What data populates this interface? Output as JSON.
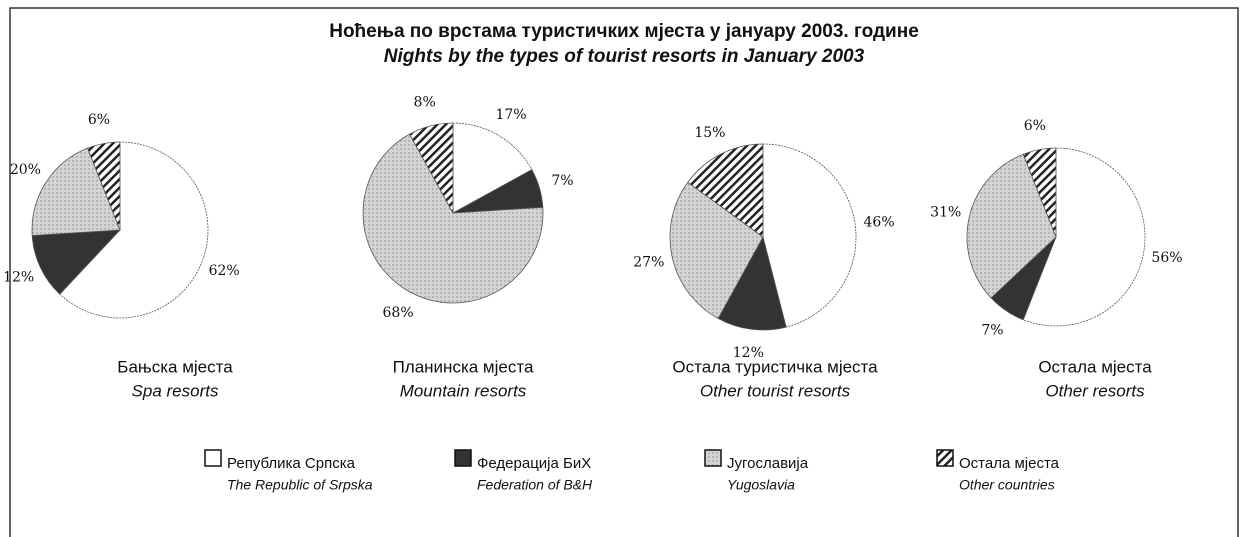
{
  "title": "Ноћења по врстама туристичких мјеста у јануару 2003. године",
  "subtitle": "Nights by the types of tourist resorts in January  2003",
  "legend": [
    {
      "name": "Република Српска",
      "name_en": "The Republic of Srpska",
      "color": "#ffffff",
      "pattern": "none"
    },
    {
      "name": "Федерација БиХ",
      "name_en": "Federation of B&H",
      "color": "#333333",
      "pattern": "none"
    },
    {
      "name": "Југославија",
      "name_en": "Yugoslavia",
      "color": "#d4d4d4",
      "pattern": "dots"
    },
    {
      "name": "Остала мјеста",
      "name_en": "Other countries",
      "color": "#ffffff",
      "pattern": "hatch"
    }
  ],
  "chart_data": [
    {
      "type": "pie",
      "title": "Бањска мјеста",
      "subtitle": "Spa resorts",
      "values": [
        62,
        12,
        20,
        6
      ],
      "value_labels": [
        "62%",
        "12%",
        "20%",
        "6%"
      ]
    },
    {
      "type": "pie",
      "title": "Планинска мјеста",
      "subtitle": "Mountain resorts",
      "values": [
        17,
        7,
        68,
        8
      ],
      "value_labels": [
        "17%",
        "7%",
        "68%",
        "8%"
      ]
    },
    {
      "type": "pie",
      "title": "Остала туристичка мјеста",
      "subtitle": "Other tourist resorts",
      "values": [
        46,
        12,
        27,
        15
      ],
      "value_labels": [
        "46%",
        "12%",
        "27%",
        "15%"
      ]
    },
    {
      "type": "pie",
      "title": "Остала мјеста",
      "subtitle": "Other resorts",
      "values": [
        56,
        7,
        31,
        6
      ],
      "value_labels": [
        "56%",
        "7%",
        "31%",
        "6%"
      ]
    }
  ]
}
